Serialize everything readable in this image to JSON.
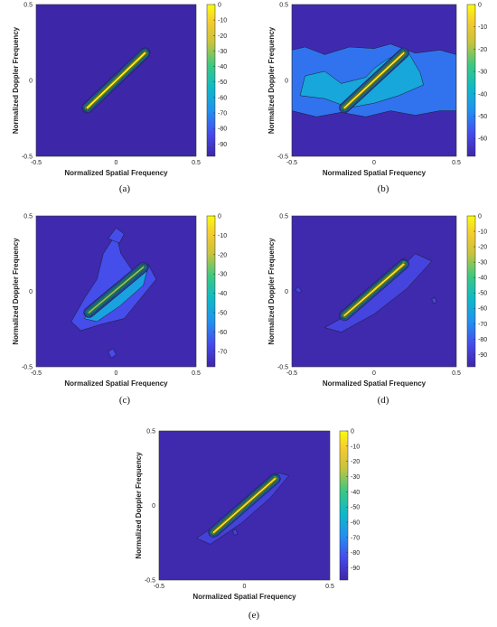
{
  "chart_data": [
    {
      "id": "a",
      "type": "heatmap",
      "subtype": "filled-contour",
      "caption": "(a)",
      "xlabel": "Normalized Spatial Frequency",
      "ylabel": "Normalized Doppler Frequency",
      "xlim": [
        -0.5,
        0.5
      ],
      "ylim": [
        -0.5,
        0.5
      ],
      "xticks": [
        "-0.5",
        "0",
        "0.5"
      ],
      "yticks": [
        "0.5",
        "0",
        "-0.5"
      ],
      "colorbar": {
        "min": -98,
        "max": 0,
        "ticks": [
          0,
          -10,
          -20,
          -30,
          -40,
          -50,
          -60,
          -70,
          -80,
          -90
        ]
      },
      "background_db": -98,
      "ridge": {
        "from": [
          -0.18,
          -0.18
        ],
        "to": [
          0.18,
          0.18
        ],
        "peak_db": 0
      },
      "regions": []
    },
    {
      "id": "b",
      "type": "heatmap",
      "subtype": "filled-contour",
      "caption": "(b)",
      "xlabel": "Normalized Spatial Frequency",
      "ylabel": "Normalized Doppler Frequency",
      "xlim": [
        -0.5,
        0.5
      ],
      "ylim": [
        -0.5,
        0.5
      ],
      "xticks": [
        "-0.5",
        "0",
        "0.5"
      ],
      "yticks": [
        "0.5",
        "0",
        "-0.5"
      ],
      "colorbar": {
        "min": -68,
        "max": 0,
        "ticks": [
          0,
          -10,
          -20,
          -30,
          -40,
          -50,
          -60
        ]
      },
      "background_db": -67,
      "ridge": {
        "from": [
          -0.18,
          -0.18
        ],
        "to": [
          0.18,
          0.18
        ],
        "peak_db": -3
      },
      "regions": [
        {
          "db": -52,
          "points": [
            [
              -0.5,
              0.2
            ],
            [
              -0.42,
              0.22
            ],
            [
              -0.3,
              0.17
            ],
            [
              -0.15,
              0.22
            ],
            [
              0.0,
              0.21
            ],
            [
              0.1,
              0.24
            ],
            [
              0.25,
              0.18
            ],
            [
              0.4,
              0.2
            ],
            [
              0.5,
              0.17
            ],
            [
              0.5,
              -0.2
            ],
            [
              0.4,
              -0.2
            ],
            [
              0.25,
              -0.23
            ],
            [
              0.1,
              -0.2
            ],
            [
              -0.05,
              -0.24
            ],
            [
              -0.2,
              -0.21
            ],
            [
              -0.35,
              -0.24
            ],
            [
              -0.5,
              -0.2
            ]
          ]
        },
        {
          "db": -42,
          "points": [
            [
              -0.42,
              0.03
            ],
            [
              -0.3,
              0.06
            ],
            [
              -0.2,
              -0.02
            ],
            [
              -0.05,
              0.02
            ],
            [
              0.0,
              0.08
            ],
            [
              0.08,
              0.14
            ],
            [
              0.2,
              0.2
            ],
            [
              0.28,
              0.05
            ],
            [
              0.3,
              -0.03
            ],
            [
              0.15,
              -0.1
            ],
            [
              0.0,
              -0.15
            ],
            [
              -0.15,
              -0.18
            ],
            [
              -0.3,
              -0.12
            ],
            [
              -0.45,
              -0.1
            ]
          ]
        }
      ]
    },
    {
      "id": "c",
      "type": "heatmap",
      "subtype": "filled-contour",
      "caption": "(c)",
      "xlabel": "Normalized Spatial Frequency",
      "ylabel": "Normalized Doppler Frequency",
      "xlim": [
        -0.5,
        0.5
      ],
      "ylim": [
        -0.5,
        0.5
      ],
      "xticks": [
        "-0.5",
        "0",
        "0.5"
      ],
      "yticks": [
        "0.5",
        "0",
        "-0.5"
      ],
      "colorbar": {
        "min": -78,
        "max": 0,
        "ticks": [
          0,
          -10,
          -20,
          -30,
          -40,
          -50,
          -60,
          -70
        ]
      },
      "background_db": -77,
      "ridge": {
        "from": [
          -0.17,
          -0.14
        ],
        "to": [
          0.17,
          0.16
        ],
        "peak_db": -25
      },
      "regions": [
        {
          "db": -66,
          "points": [
            [
              -0.28,
              -0.2
            ],
            [
              -0.2,
              -0.05
            ],
            [
              -0.12,
              0.08
            ],
            [
              -0.08,
              0.25
            ],
            [
              0.0,
              0.38
            ],
            [
              0.03,
              0.25
            ],
            [
              0.1,
              0.14
            ],
            [
              0.2,
              0.18
            ],
            [
              0.25,
              0.08
            ],
            [
              0.15,
              -0.05
            ],
            [
              0.05,
              -0.18
            ],
            [
              -0.1,
              -0.22
            ],
            [
              -0.22,
              -0.26
            ]
          ]
        },
        {
          "db": -66,
          "points": [
            [
              -0.05,
              0.35
            ],
            [
              0.0,
              0.42
            ],
            [
              0.05,
              0.38
            ],
            [
              0.02,
              0.32
            ]
          ]
        },
        {
          "db": -66,
          "points": [
            [
              -0.05,
              -0.4
            ],
            [
              -0.02,
              -0.38
            ],
            [
              0.0,
              -0.42
            ],
            [
              -0.03,
              -0.44
            ]
          ]
        },
        {
          "db": -50,
          "points": [
            [
              -0.2,
              -0.18
            ],
            [
              -0.05,
              -0.02
            ],
            [
              0.1,
              0.1
            ],
            [
              0.2,
              0.16
            ],
            [
              0.17,
              0.04
            ],
            [
              0.02,
              -0.1
            ],
            [
              -0.12,
              -0.2
            ]
          ]
        }
      ]
    },
    {
      "id": "d",
      "type": "heatmap",
      "subtype": "filled-contour",
      "caption": "(d)",
      "xlabel": "Normalized Spatial Frequency",
      "ylabel": "Normalized Doppler Frequency",
      "xlim": [
        -0.5,
        0.5
      ],
      "ylim": [
        -0.5,
        0.5
      ],
      "xticks": [
        "-0.5",
        "0",
        "0.5"
      ],
      "yticks": [
        "0.5",
        "0",
        "-0.5"
      ],
      "colorbar": {
        "min": -98,
        "max": 0,
        "ticks": [
          0,
          -10,
          -20,
          -30,
          -40,
          -50,
          -60,
          -70,
          -80,
          -90
        ]
      },
      "background_db": -97,
      "ridge": {
        "from": [
          -0.18,
          -0.16
        ],
        "to": [
          0.18,
          0.18
        ],
        "peak_db": -5
      },
      "regions": [
        {
          "db": -86,
          "points": [
            [
              -0.3,
              -0.24
            ],
            [
              -0.1,
              -0.12
            ],
            [
              0.1,
              0.08
            ],
            [
              0.25,
              0.25
            ],
            [
              0.35,
              0.2
            ],
            [
              0.2,
              0.02
            ],
            [
              0.0,
              -0.15
            ],
            [
              -0.2,
              -0.27
            ]
          ]
        },
        {
          "db": -86,
          "points": [
            [
              -0.48,
              0.01
            ],
            [
              -0.46,
              0.03
            ],
            [
              -0.44,
              0.0
            ],
            [
              -0.46,
              -0.01
            ]
          ]
        },
        {
          "db": -86,
          "points": [
            [
              0.35,
              -0.05
            ],
            [
              0.37,
              -0.04
            ],
            [
              0.38,
              -0.07
            ],
            [
              0.36,
              -0.08
            ]
          ]
        }
      ]
    },
    {
      "id": "e",
      "type": "heatmap",
      "subtype": "filled-contour",
      "caption": "(e)",
      "xlabel": "Normalized Spatial Frequency",
      "ylabel": "Normalized Doppler Frequency",
      "xlim": [
        -0.5,
        0.5
      ],
      "ylim": [
        -0.5,
        0.5
      ],
      "xticks": [
        "-0.5",
        "0",
        "0.5"
      ],
      "yticks": [
        "0.5",
        "0",
        "-0.5"
      ],
      "colorbar": {
        "min": -98,
        "max": 0,
        "ticks": [
          0,
          -10,
          -20,
          -30,
          -40,
          -50,
          -60,
          -70,
          -80,
          -90
        ]
      },
      "background_db": -97,
      "ridge": {
        "from": [
          -0.18,
          -0.18
        ],
        "to": [
          0.18,
          0.18
        ],
        "peak_db": -5
      },
      "regions": [
        {
          "db": -87,
          "points": [
            [
              -0.28,
              -0.22
            ],
            [
              -0.1,
              -0.08
            ],
            [
              0.05,
              0.05
            ],
            [
              0.2,
              0.22
            ],
            [
              0.26,
              0.2
            ],
            [
              0.15,
              0.05
            ],
            [
              -0.02,
              -0.12
            ],
            [
              -0.2,
              -0.26
            ]
          ]
        },
        {
          "db": -87,
          "points": [
            [
              -0.07,
              -0.17
            ],
            [
              -0.05,
              -0.16
            ],
            [
              -0.04,
              -0.19
            ],
            [
              -0.06,
              -0.2
            ]
          ]
        }
      ]
    }
  ]
}
